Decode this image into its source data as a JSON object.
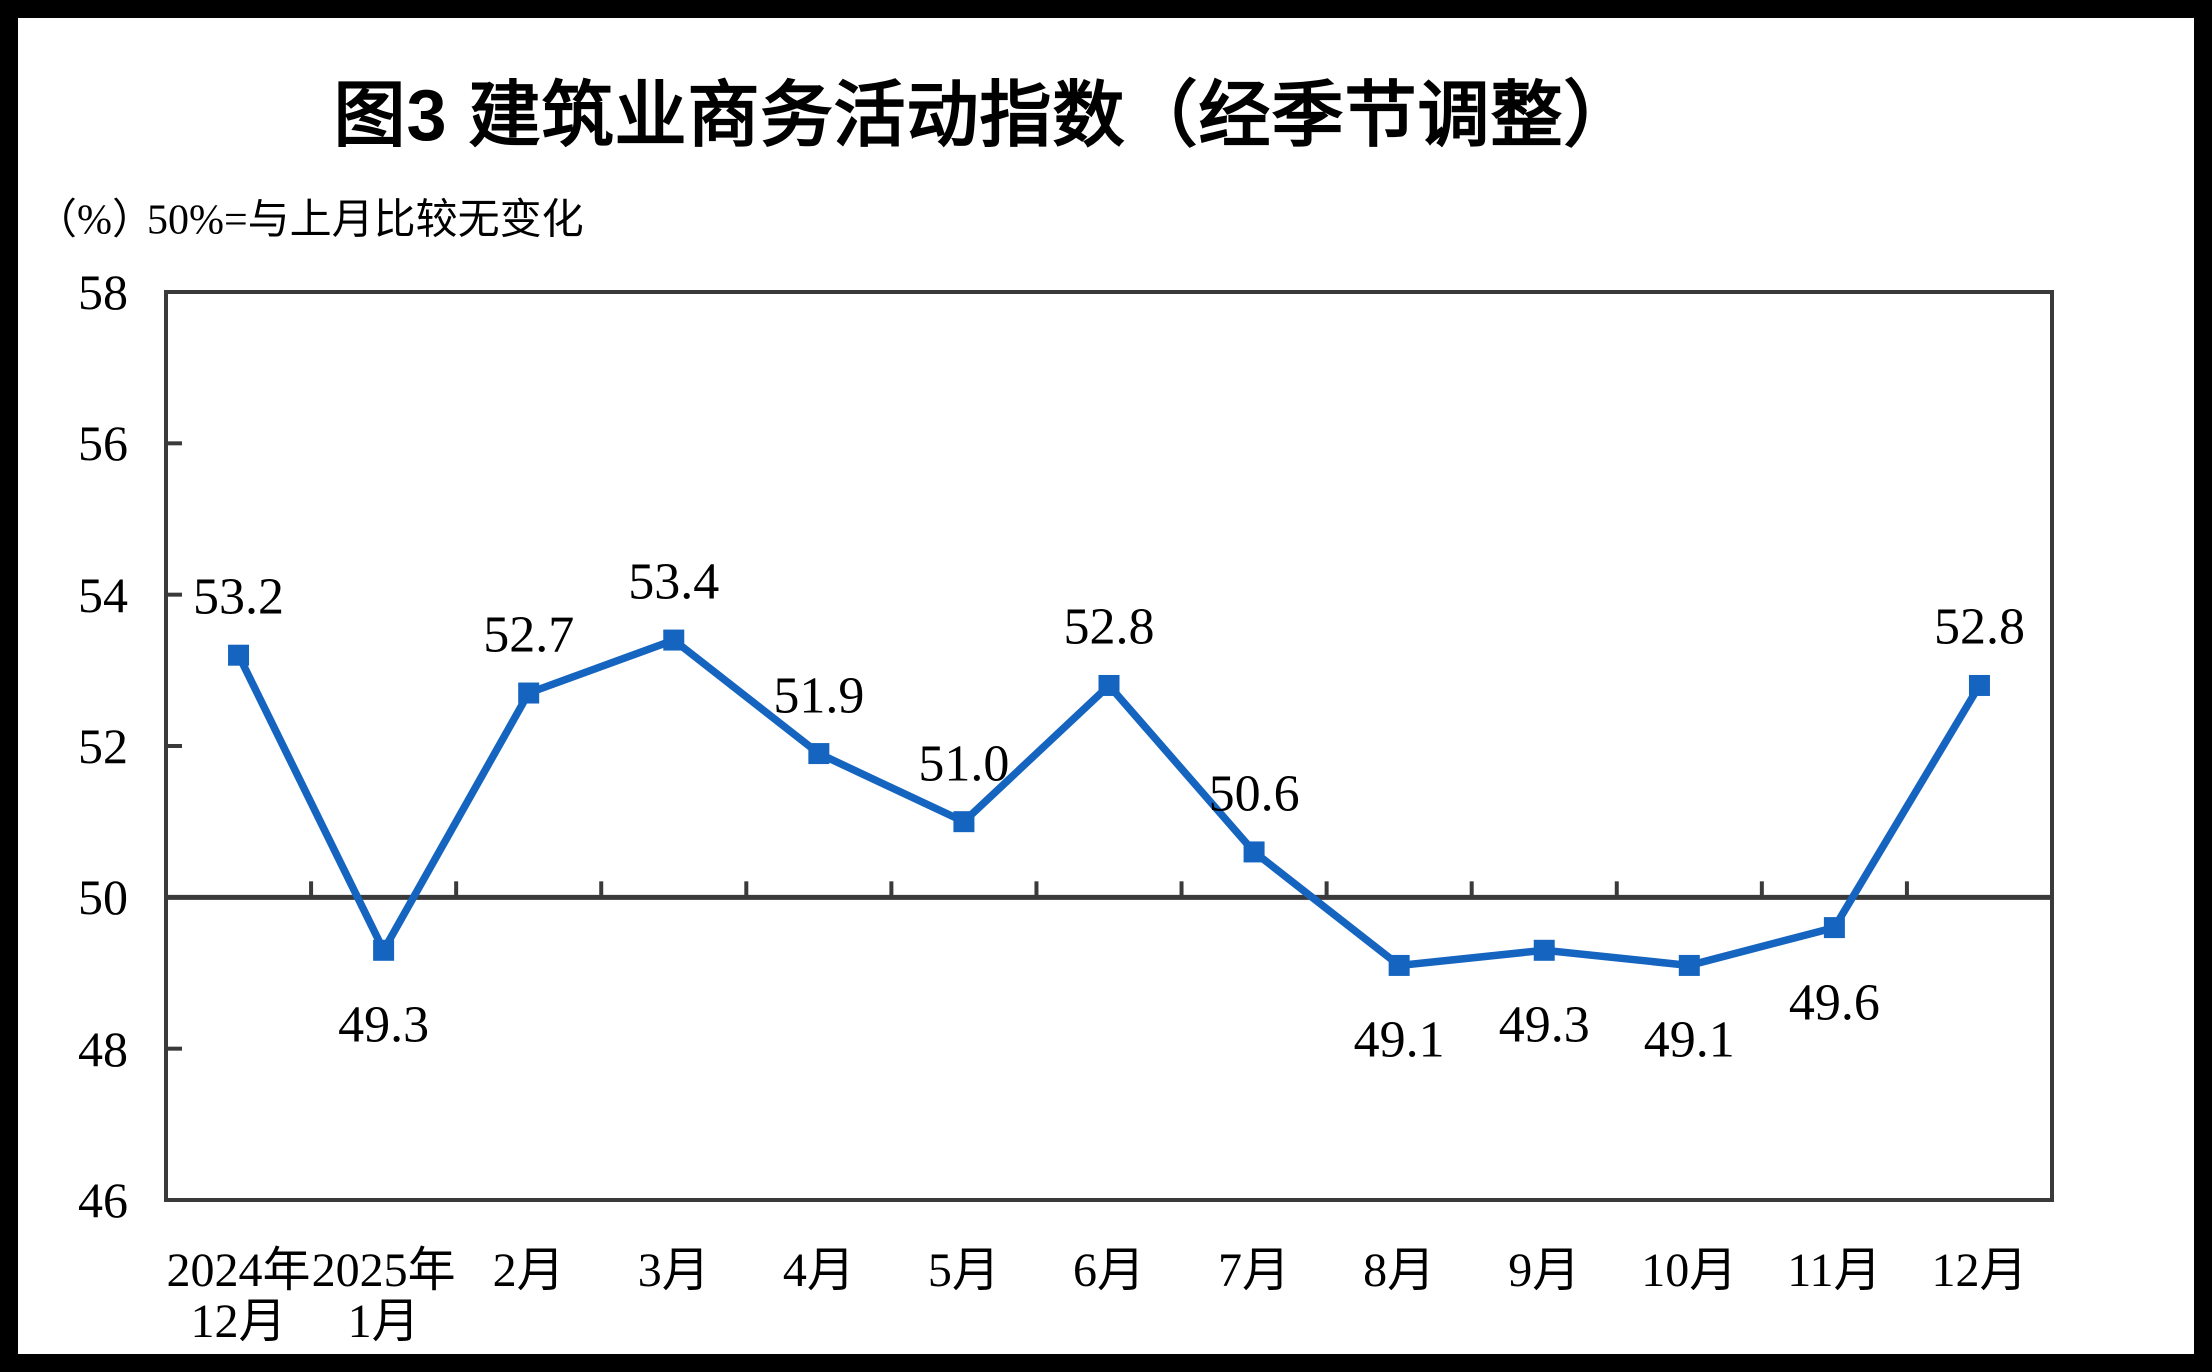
{
  "chart_data": {
    "type": "line",
    "title": "图3 建筑业商务活动指数（经季节调整）",
    "subtitle_unit": "（%）",
    "subtitle_note": "50%=与上月比较无变化",
    "categories": [
      [
        "2024年",
        "12月"
      ],
      [
        "2025年",
        "1月"
      ],
      [
        "2月"
      ],
      [
        "3月"
      ],
      [
        "4月"
      ],
      [
        "5月"
      ],
      [
        "6月"
      ],
      [
        "7月"
      ],
      [
        "8月"
      ],
      [
        "9月"
      ],
      [
        "10月"
      ],
      [
        "11月"
      ],
      [
        "12月"
      ]
    ],
    "values": [
      53.2,
      49.3,
      52.7,
      53.4,
      51.9,
      51.0,
      52.8,
      50.6,
      49.1,
      49.3,
      49.1,
      49.6,
      52.8
    ],
    "labels": [
      "53.2",
      "49.3",
      "52.7",
      "53.4",
      "51.9",
      "51.0",
      "52.8",
      "50.6",
      "49.1",
      "49.3",
      "49.1",
      "49.6",
      "52.8"
    ],
    "label_positions": [
      "above",
      "below",
      "above",
      "above",
      "above",
      "above",
      "above",
      "above",
      "below",
      "below",
      "below",
      "below",
      "above"
    ],
    "yticks": [
      58,
      56,
      54,
      52,
      50,
      48,
      46
    ],
    "ylim": [
      46,
      58
    ],
    "reference_line": 50,
    "grid": "off",
    "legend": "none",
    "line_color": "#1565C0",
    "axis_color": "#3a3a3a",
    "text_color": "#000000"
  }
}
